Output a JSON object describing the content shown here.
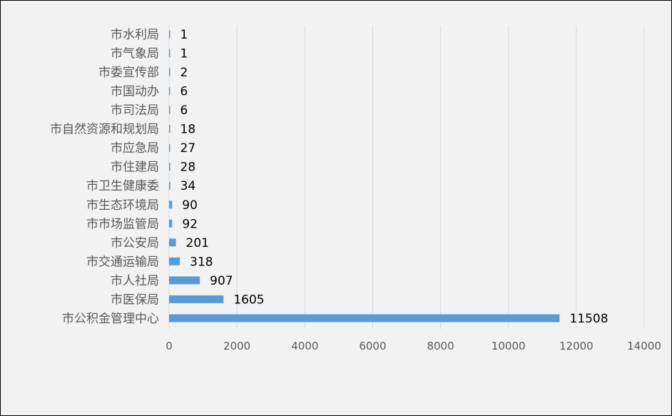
{
  "chart_data": {
    "type": "bar",
    "orientation": "horizontal",
    "categories": [
      "市水利局",
      "市气象局",
      "市委宣传部",
      "市国动办",
      "市司法局",
      "市自然资源和规划局",
      "市应急局",
      "市住建局",
      "市卫生健康委",
      "市生态环境局",
      "市市场监管局",
      "市公安局",
      "市交通运输局",
      "市人社局",
      "市医保局",
      "市公积金管理中心"
    ],
    "values": [
      1,
      1,
      2,
      6,
      6,
      18,
      27,
      28,
      34,
      90,
      92,
      201,
      318,
      907,
      1605,
      11508
    ],
    "data_labels": [
      "1",
      "1",
      "2",
      "6",
      "6",
      "18",
      "27",
      "28",
      "34",
      "90",
      "92",
      "201",
      "318",
      "907",
      "1605",
      "11508"
    ],
    "xlim": [
      0,
      14000
    ],
    "x_ticks": [
      "0",
      "2000",
      "4000",
      "6000",
      "8000",
      "10000",
      "12000",
      "14000"
    ],
    "grid": true,
    "legend": "none",
    "bar_color": "#5b9bd5"
  }
}
